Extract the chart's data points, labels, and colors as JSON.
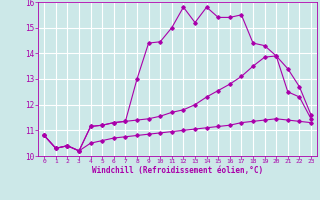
{
  "title": "",
  "xlabel": "Windchill (Refroidissement éolien,°C)",
  "background_color": "#cce8e8",
  "grid_color": "#ffffff",
  "line_color": "#aa00aa",
  "xlim": [
    -0.5,
    23.5
  ],
  "ylim": [
    10,
    16
  ],
  "yticks": [
    10,
    11,
    12,
    13,
    14,
    15,
    16
  ],
  "xticks": [
    0,
    1,
    2,
    3,
    4,
    5,
    6,
    7,
    8,
    9,
    10,
    11,
    12,
    13,
    14,
    15,
    16,
    17,
    18,
    19,
    20,
    21,
    22,
    23
  ],
  "curves": [
    {
      "x": [
        0,
        1,
        2,
        3,
        4,
        5,
        6,
        7,
        8,
        9,
        10,
        11,
        12,
        13,
        14,
        15,
        16,
        17,
        18,
        19,
        20,
        21,
        22,
        23
      ],
      "y": [
        10.8,
        10.3,
        10.4,
        10.2,
        10.5,
        10.6,
        10.7,
        10.75,
        10.8,
        10.85,
        10.9,
        10.95,
        11.0,
        11.05,
        11.1,
        11.15,
        11.2,
        11.3,
        11.35,
        11.4,
        11.45,
        11.4,
        11.35,
        11.3
      ]
    },
    {
      "x": [
        0,
        1,
        2,
        3,
        4,
        5,
        6,
        7,
        8,
        9,
        10,
        11,
        12,
        13,
        14,
        15,
        16,
        17,
        18,
        19,
        20,
        21,
        22,
        23
      ],
      "y": [
        10.8,
        10.3,
        10.4,
        10.2,
        11.15,
        11.2,
        11.3,
        11.35,
        11.4,
        11.45,
        11.55,
        11.7,
        11.8,
        12.0,
        12.3,
        12.55,
        12.8,
        13.1,
        13.5,
        13.85,
        13.9,
        13.4,
        12.7,
        11.6
      ]
    },
    {
      "x": [
        0,
        1,
        2,
        3,
        4,
        5,
        6,
        7,
        8,
        9,
        10,
        11,
        12,
        13,
        14,
        15,
        16,
        17,
        18,
        19,
        20,
        21,
        22,
        23
      ],
      "y": [
        10.8,
        10.3,
        10.4,
        10.2,
        11.15,
        11.2,
        11.3,
        11.35,
        13.0,
        14.4,
        14.45,
        15.0,
        15.8,
        15.2,
        15.8,
        15.4,
        15.4,
        15.5,
        14.4,
        14.3,
        13.9,
        12.5,
        12.3,
        11.45
      ]
    }
  ]
}
